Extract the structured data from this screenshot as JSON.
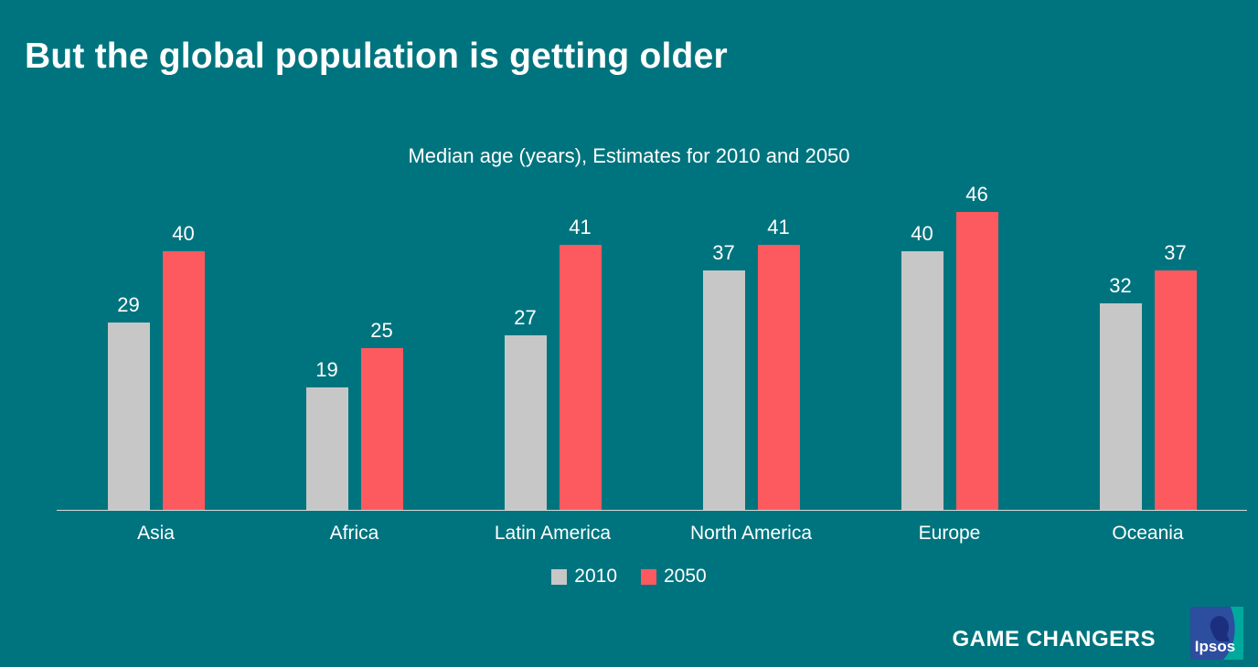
{
  "title": "But the global population is getting older",
  "chart_data": {
    "type": "bar",
    "title": "Median age (years), Estimates for 2010 and 2050",
    "categories": [
      "Asia",
      "Africa",
      "Latin America",
      "North America",
      "Europe",
      "Oceania"
    ],
    "series": [
      {
        "name": "2010",
        "color": "#c7c7c7",
        "values": [
          29,
          19,
          27,
          37,
          40,
          32
        ]
      },
      {
        "name": "2050",
        "color": "#fc5a5f",
        "values": [
          40,
          25,
          41,
          41,
          46,
          37
        ]
      }
    ],
    "ylim": [
      0,
      52
    ],
    "grid": false,
    "axes_visible": "x-only",
    "data_labels": true,
    "legend_position": "bottom-center"
  },
  "footer": {
    "tagline": "GAME CHANGERS",
    "logo_text": "Ipsos"
  },
  "colors": {
    "background": "#00747E",
    "text": "#ffffff",
    "axis_line": "#d9d9d9",
    "bar_2010": "#c7c7c7",
    "bar_2050": "#fc5a5f",
    "logo_blue": "#2d4d9e",
    "logo_navy": "#1b2f7e",
    "logo_teal": "#00a99d"
  }
}
